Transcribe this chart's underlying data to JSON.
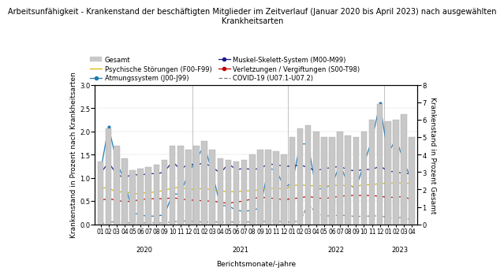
{
  "title": "Arbeitsunfähigkeit - Krankenstand der beschäftigten Mitglieder im Zeitverlauf (Januar 2020 bis April 2023) nach ausgewählten\nKrankheitsarten",
  "xlabel": "Berichtsmonate/-jahre",
  "ylabel_left": "Krankenstand in Prozent nach Krankheitsarten",
  "ylabel_right": "Krankenstand in Prozent Gesamt",
  "x_labels": [
    "01",
    "02",
    "03",
    "04",
    "05",
    "06",
    "07",
    "08",
    "09",
    "10",
    "11",
    "12",
    "01",
    "02",
    "03",
    "04",
    "05",
    "06",
    "07",
    "08",
    "09",
    "10",
    "11",
    "12",
    "01",
    "02",
    "03",
    "04",
    "05",
    "06",
    "07",
    "08",
    "09",
    "10",
    "11",
    "12",
    "01",
    "02",
    "03",
    "04"
  ],
  "year_labels": [
    "2020",
    "2021",
    "2022",
    "2023"
  ],
  "gesamt": [
    3.6,
    5.5,
    4.5,
    3.8,
    3.1,
    3.2,
    3.3,
    3.4,
    3.7,
    4.5,
    4.5,
    4.3,
    4.5,
    4.8,
    4.3,
    3.8,
    3.7,
    3.6,
    3.7,
    4.0,
    4.3,
    4.3,
    4.2,
    4.0,
    5.0,
    5.5,
    5.7,
    5.3,
    5.0,
    5.0,
    5.3,
    5.1,
    5.0,
    5.3,
    6.0,
    6.9,
    5.9,
    6.0,
    6.3,
    5.0
  ],
  "atemweg": [
    1.15,
    2.1,
    1.35,
    0.93,
    0.25,
    0.2,
    0.17,
    0.18,
    0.2,
    0.65,
    0.65,
    1.1,
    1.4,
    1.7,
    1.1,
    0.4,
    0.4,
    0.3,
    0.28,
    0.3,
    0.35,
    1.2,
    1.17,
    0.8,
    0.88,
    1.73,
    1.73,
    0.75,
    0.78,
    0.85,
    1.3,
    0.85,
    0.78,
    1.3,
    1.82,
    2.6,
    1.5,
    1.85,
    1.35,
    0.93
  ],
  "psychisch": [
    0.77,
    0.8,
    0.67,
    0.72,
    0.65,
    0.67,
    0.68,
    0.7,
    0.73,
    0.78,
    0.8,
    0.75,
    0.75,
    0.78,
    0.73,
    0.72,
    0.7,
    0.7,
    0.72,
    0.72,
    0.75,
    0.77,
    0.78,
    0.75,
    0.83,
    0.85,
    0.83,
    0.83,
    0.82,
    0.83,
    0.85,
    0.82,
    0.82,
    0.85,
    0.85,
    0.88,
    0.88,
    0.9,
    0.88,
    0.88
  ],
  "muskel": [
    1.1,
    1.33,
    1.08,
    1.0,
    1.08,
    1.05,
    1.1,
    1.08,
    1.13,
    1.35,
    1.18,
    1.3,
    1.28,
    1.32,
    1.23,
    1.1,
    1.3,
    1.18,
    1.2,
    1.18,
    1.2,
    1.3,
    1.28,
    1.25,
    1.25,
    1.28,
    1.22,
    1.15,
    1.2,
    1.22,
    1.25,
    1.17,
    1.15,
    1.18,
    1.18,
    1.25,
    1.15,
    1.12,
    1.1,
    1.08
  ],
  "verletzung": [
    0.52,
    0.55,
    0.52,
    0.48,
    0.5,
    0.53,
    0.55,
    0.55,
    0.55,
    0.57,
    0.55,
    0.52,
    0.52,
    0.5,
    0.5,
    0.47,
    0.45,
    0.48,
    0.5,
    0.55,
    0.58,
    0.57,
    0.55,
    0.53,
    0.55,
    0.57,
    0.6,
    0.57,
    0.55,
    0.58,
    0.6,
    0.62,
    0.62,
    0.62,
    0.62,
    0.6,
    0.58,
    0.58,
    0.6,
    0.52
  ],
  "covid": [
    0.0,
    0.05,
    0.05,
    0.03,
    0.03,
    0.03,
    0.03,
    0.03,
    0.03,
    0.05,
    0.07,
    0.07,
    0.05,
    0.05,
    0.05,
    0.05,
    0.05,
    0.05,
    0.05,
    0.05,
    0.05,
    0.07,
    0.07,
    0.05,
    0.05,
    0.07,
    0.43,
    0.25,
    0.18,
    0.18,
    0.2,
    0.18,
    0.17,
    0.17,
    0.18,
    0.18,
    0.15,
    0.12,
    0.17,
    0.07
  ],
  "bar_color": "#c8c8c8",
  "bar_edge_color": "#aaaaaa",
  "atemweg_color": "#1f7ab4",
  "psychisch_color": "#d4b800",
  "muskel_color": "#1a1a8c",
  "verletzung_color": "#c00000",
  "covid_color": "#808080",
  "background_color": "#ffffff",
  "title_fontsize": 7.0,
  "axis_fontsize": 6.5,
  "tick_fontsize": 6.0,
  "legend_fontsize": 6.0,
  "ylim_left": [
    0.0,
    3.0
  ],
  "ylim_right": [
    0.0,
    8.0
  ],
  "yticks_left": [
    0.0,
    0.5,
    1.0,
    1.5,
    2.0,
    2.5,
    3.0
  ],
  "yticks_right": [
    0.0,
    1.0,
    2.0,
    3.0,
    4.0,
    5.0,
    6.0,
    7.0,
    8.0
  ]
}
